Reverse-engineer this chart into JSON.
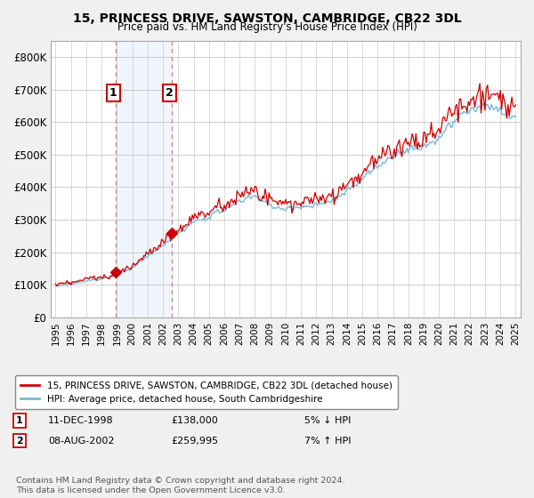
{
  "title": "15, PRINCESS DRIVE, SAWSTON, CAMBRIDGE, CB22 3DL",
  "subtitle": "Price paid vs. HM Land Registry's House Price Index (HPI)",
  "ylim": [
    0,
    850000
  ],
  "yticks": [
    0,
    100000,
    200000,
    300000,
    400000,
    500000,
    600000,
    700000,
    800000
  ],
  "ytick_labels": [
    "£0",
    "£100K",
    "£200K",
    "£300K",
    "£400K",
    "£500K",
    "£600K",
    "£700K",
    "£800K"
  ],
  "background_color": "#f0f0f0",
  "plot_bg_color": "#ffffff",
  "grid_color": "#cccccc",
  "hpi_color": "#7ab8d9",
  "price_color": "#cc0000",
  "sale1_date": "11-DEC-1998",
  "sale1_price": 138000,
  "sale1_price_str": "£138,000",
  "sale1_hpi_pct": "5% ↓ HPI",
  "sale2_date": "08-AUG-2002",
  "sale2_price": 259995,
  "sale2_price_str": "£259,995",
  "sale2_hpi_pct": "7% ↑ HPI",
  "legend_label1": "15, PRINCESS DRIVE, SAWSTON, CAMBRIDGE, CB22 3DL (detached house)",
  "legend_label2": "HPI: Average price, detached house, South Cambridgeshire",
  "footnote": "Contains HM Land Registry data © Crown copyright and database right 2024.\nThis data is licensed under the Open Government Licence v3.0.",
  "xlim_start": 1994.7,
  "xlim_end": 2025.3
}
